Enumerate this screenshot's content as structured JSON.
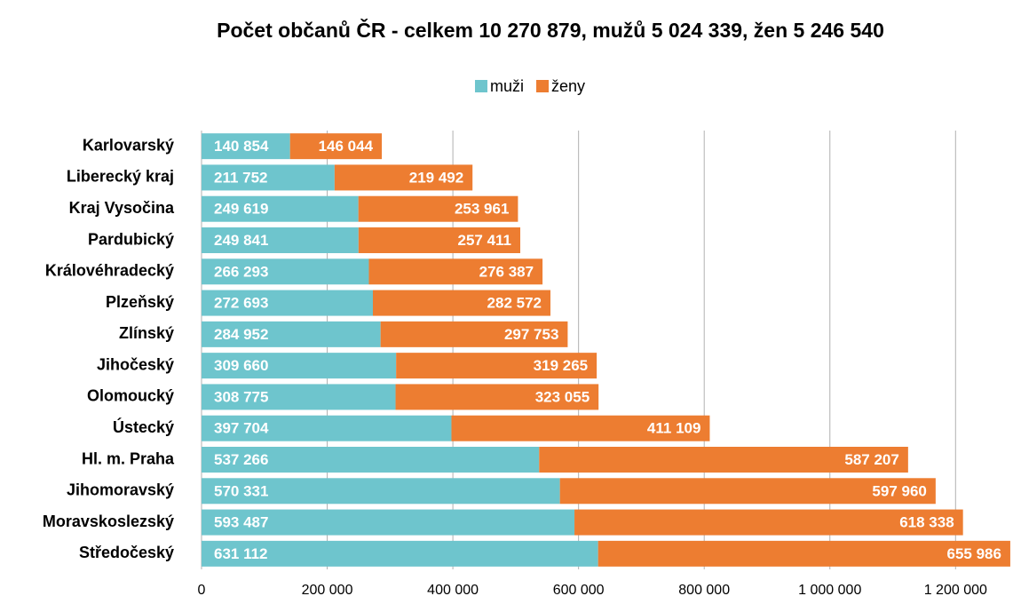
{
  "chart_data": {
    "type": "stacked_bar_horizontal",
    "title": "Počet občanů ČR - celkem 10 270 879, mužů 5 024 339, žen 5 246 540",
    "categories": [
      "Karlovarský",
      "Liberecký kraj",
      "Kraj Vysočina",
      "Pardubický",
      "Královéhradecký",
      "Plzeňský",
      "Zlínský",
      "Jihočeský",
      "Olomoucký",
      "Ústecký",
      "Hl. m. Praha",
      "Jihomoravský",
      "Moravskoslezský",
      "Středočeský"
    ],
    "series": [
      {
        "name": "muži",
        "color": "#6ec5cd",
        "values": [
          140854,
          211752,
          249619,
          249841,
          266293,
          272693,
          284952,
          309660,
          308775,
          397704,
          537266,
          570331,
          593487,
          631112
        ],
        "value_labels": [
          "140 854",
          "211 752",
          "249 619",
          "249 841",
          "266 293",
          "272 693",
          "284 952",
          "309 660",
          "308 775",
          "397 704",
          "537 266",
          "570 331",
          "593 487",
          "631 112"
        ]
      },
      {
        "name": "ženy",
        "color": "#ed7d31",
        "values": [
          146044,
          219492,
          253961,
          257411,
          276387,
          282572,
          297753,
          319265,
          323055,
          411109,
          587207,
          597960,
          618338,
          655986
        ],
        "value_labels": [
          "146 044",
          "219 492",
          "253 961",
          "257 411",
          "276 387",
          "282 572",
          "297 753",
          "319 265",
          "323 055",
          "411 109",
          "587 207",
          "597 960",
          "618 338",
          "655 986"
        ]
      }
    ],
    "xlim": [
      0,
      1290000
    ],
    "xticks": [
      0,
      {
        "value": 200000,
        "label": "200 000"
      },
      {
        "value": 400000,
        "label": "400 000"
      },
      {
        "value": 600000,
        "label": "600 000"
      },
      {
        "value": 800000,
        "label": "800 000"
      },
      {
        "value": 1000000,
        "label": "1 000 000"
      },
      {
        "value": 1200000,
        "label": "1 200 000"
      }
    ],
    "grid": true,
    "legend": "top"
  }
}
